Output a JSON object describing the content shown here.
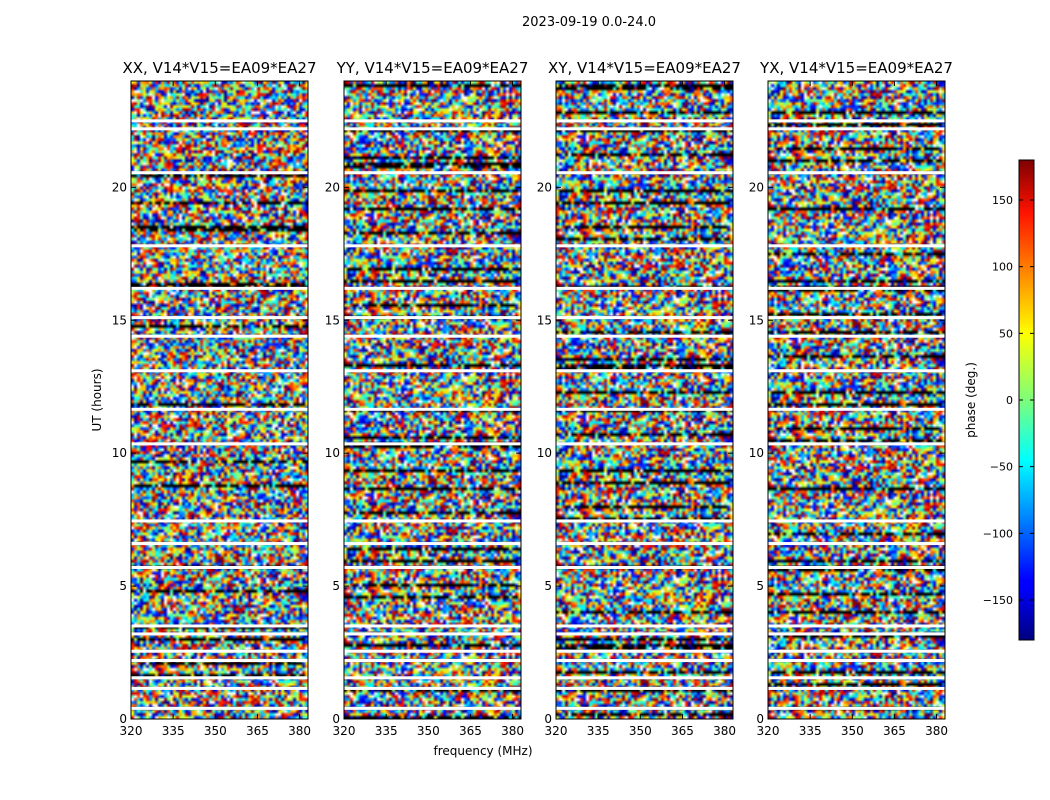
{
  "figure_title": "2023-09-19 0.0-24.0",
  "chart_data": {
    "type": "heatmap",
    "panels": [
      {
        "title": "XX, V14*V15=EA09*EA27"
      },
      {
        "title": "YY, V14*V15=EA09*EA27"
      },
      {
        "title": "XY, V14*V15=EA09*EA27"
      },
      {
        "title": "YX, V14*V15=EA09*EA27"
      }
    ],
    "xlabel": "frequency (MHz)",
    "ylabel": "UT (hours)",
    "xlim": [
      320,
      383
    ],
    "ylim": [
      0,
      24
    ],
    "xticks": [
      "320",
      "335",
      "350",
      "365",
      "380"
    ],
    "xtick_values": [
      320,
      335,
      350,
      365,
      380
    ],
    "yticks": [
      "0",
      "5",
      "10",
      "15",
      "20"
    ],
    "ytick_values": [
      0,
      5,
      10,
      15,
      20
    ],
    "colorbar": {
      "label": "phase (deg.)",
      "range": [
        -180,
        180
      ],
      "ticks": [
        "150",
        "100",
        "50",
        "0",
        "−50",
        "−100",
        "−150"
      ],
      "tick_values": [
        150,
        100,
        50,
        0,
        -50,
        -100,
        -150
      ],
      "colormap": "jet"
    },
    "white_gaps_ut": [
      0.4,
      1.15,
      1.55,
      2.2,
      2.55,
      3.2,
      3.5,
      5.7,
      6.6,
      7.45,
      10.35,
      11.65,
      13.1,
      14.4,
      15.1,
      16.2,
      17.8,
      20.55,
      22.2,
      22.5
    ]
  }
}
